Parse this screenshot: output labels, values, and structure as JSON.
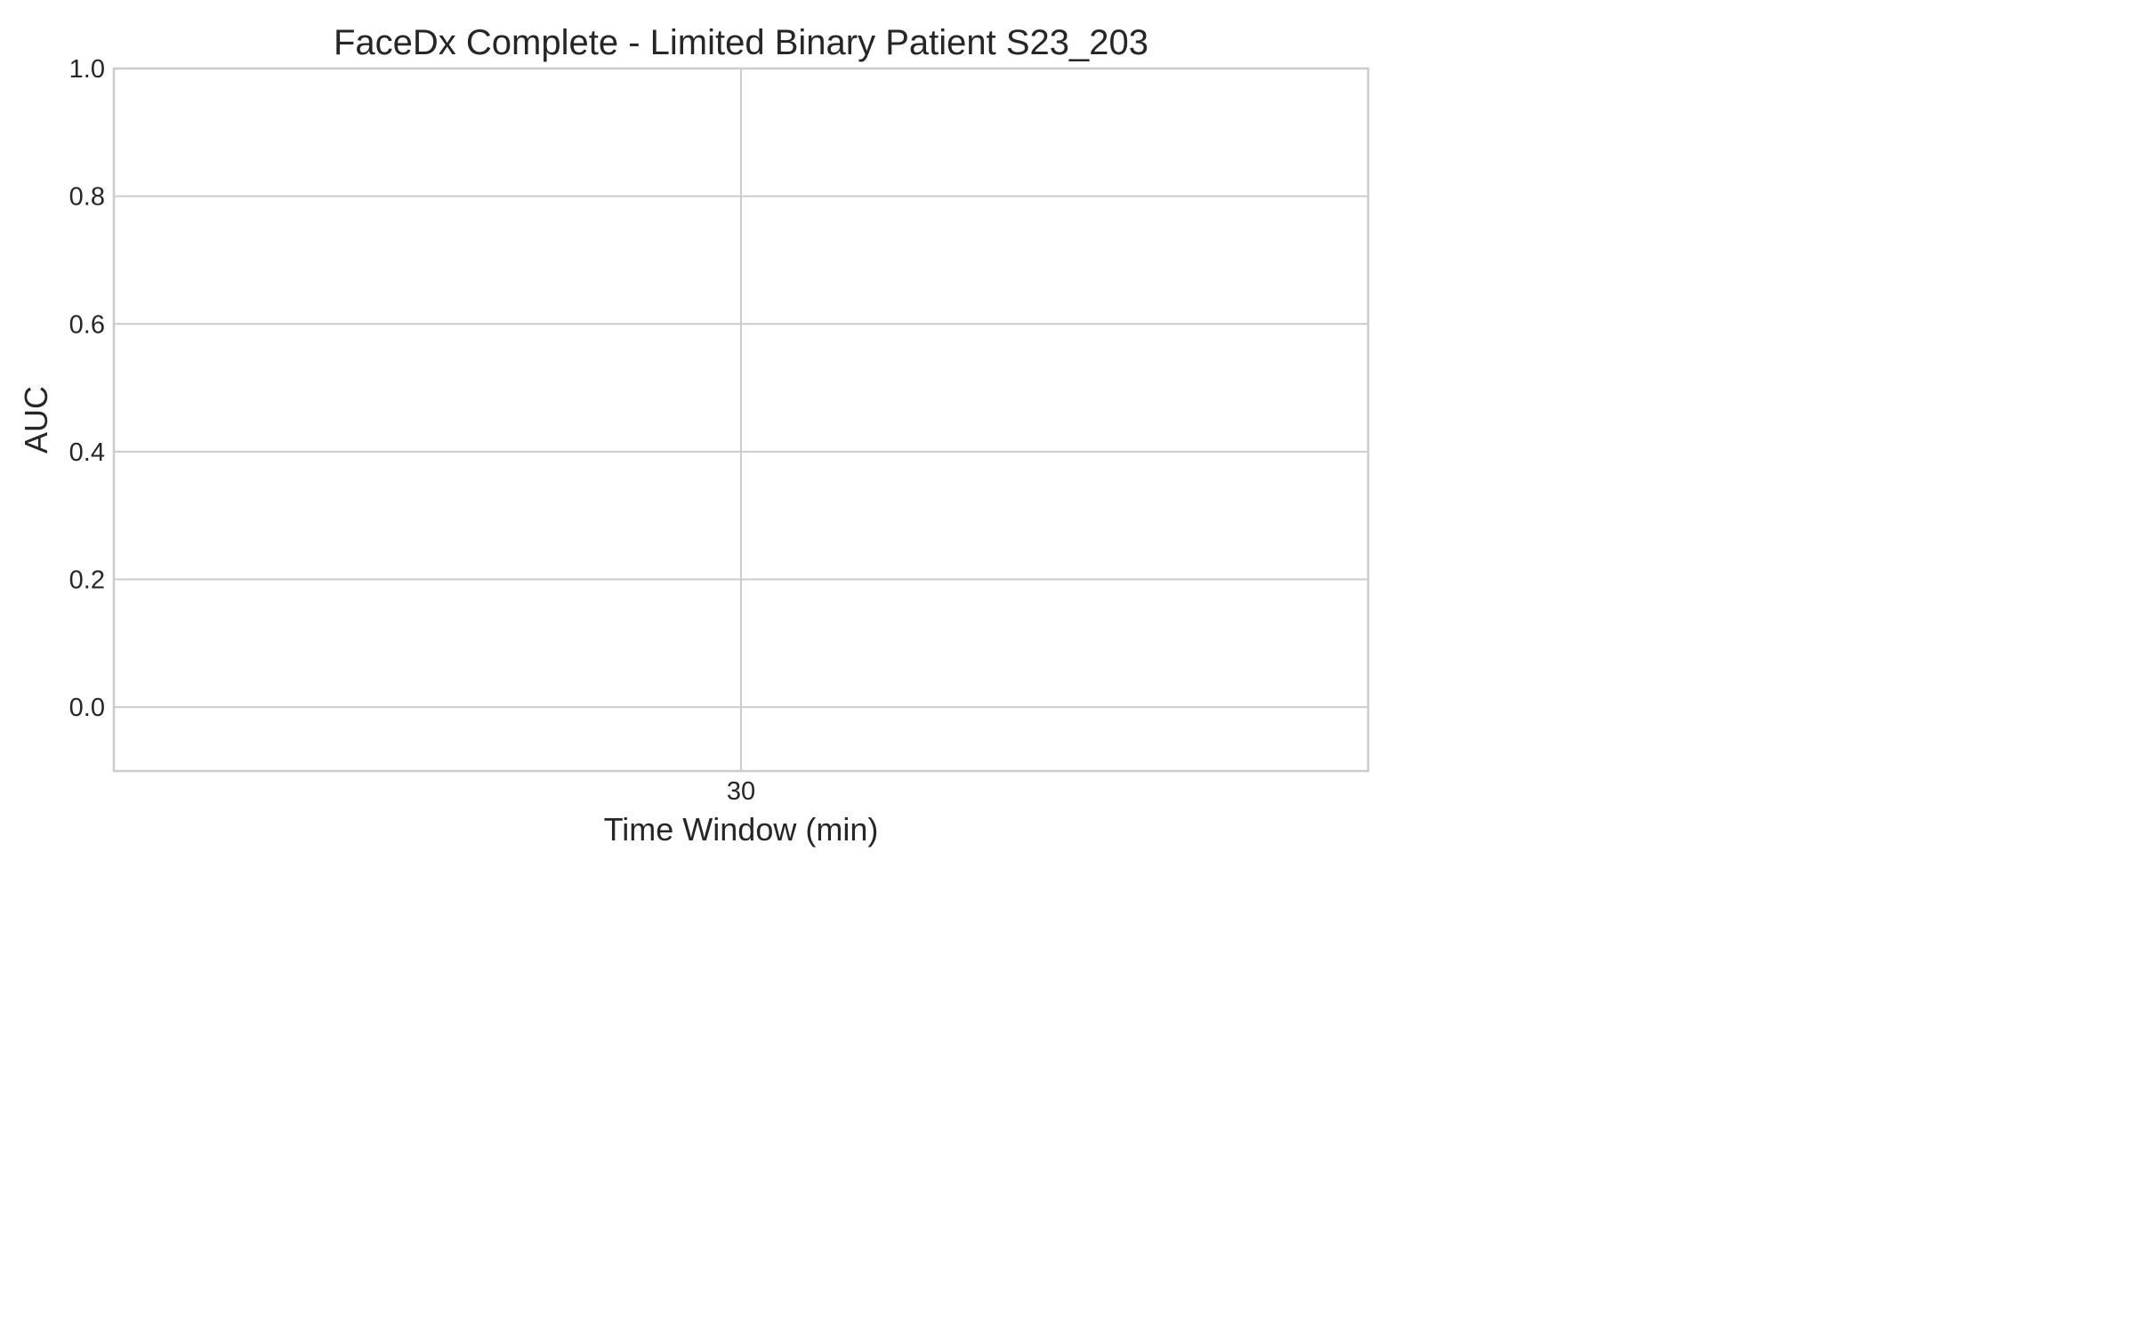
{
  "chart_data": {
    "type": "line",
    "title": "FaceDx Complete - Limited Binary Patient S23_203",
    "xlabel": "Time Window (min)",
    "ylabel": "AUC",
    "x_ticks": [
      "30"
    ],
    "y_ticks": [
      "0.0",
      "0.2",
      "0.4",
      "0.6",
      "0.8",
      "1.0"
    ],
    "y_tick_values": [
      0.0,
      0.2,
      0.4,
      0.6,
      0.8,
      1.0
    ],
    "ylim": [
      -0.1,
      1.0
    ],
    "x_categories": [
      "30"
    ],
    "series": [],
    "grid": true,
    "colors": {
      "grid": "#cccccc",
      "text": "#262626",
      "background": "#ffffff"
    }
  }
}
